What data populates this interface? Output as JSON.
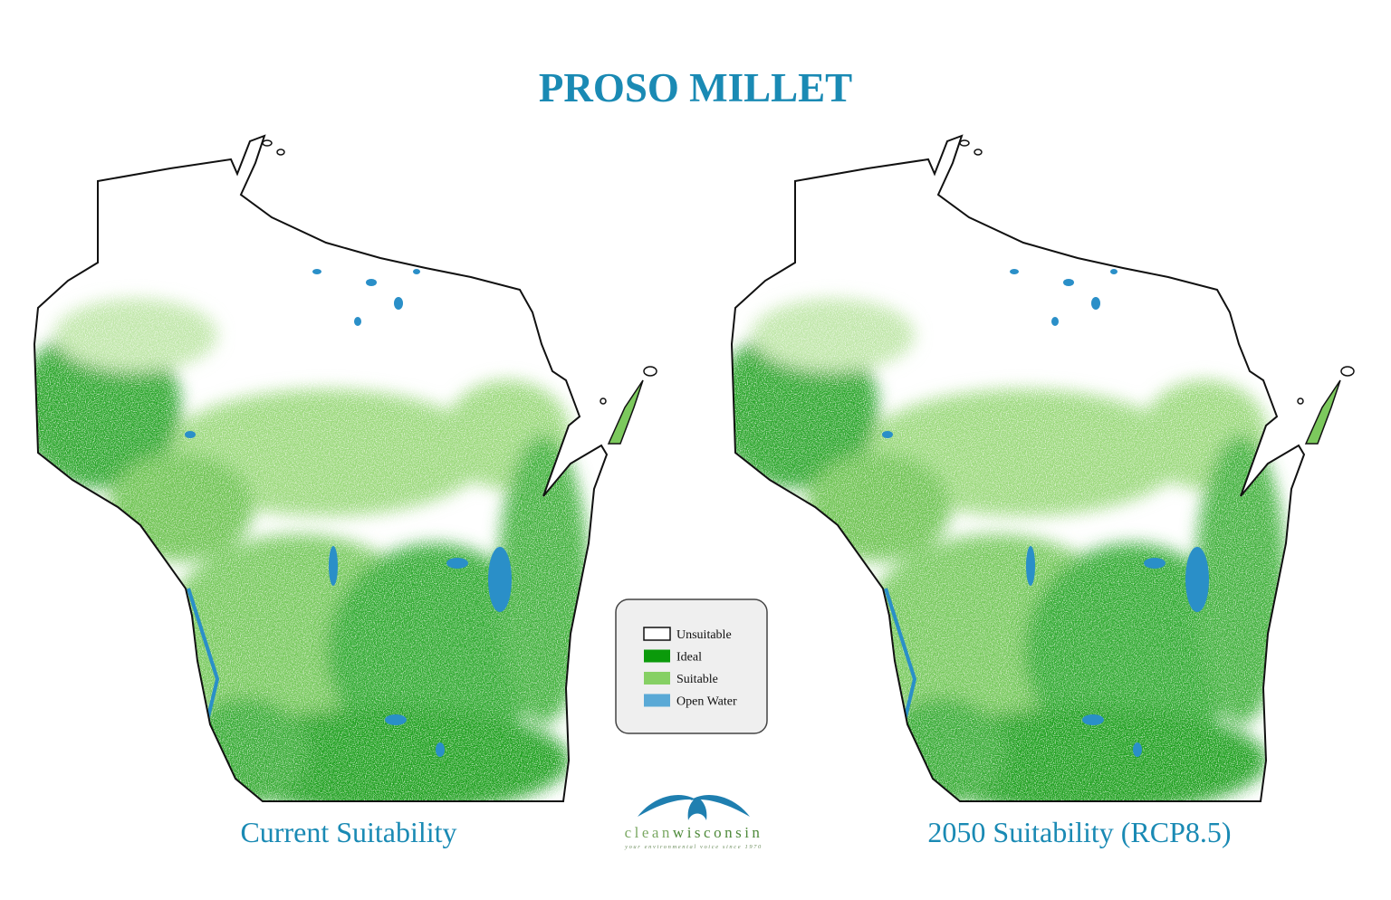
{
  "title": "PROSO MILLET",
  "maps": [
    {
      "caption": "Current Suitability"
    },
    {
      "caption": "2050 Suitability (RCP8.5)"
    }
  ],
  "legend": {
    "items": [
      {
        "label": "Unsuitable",
        "color": "#ffffff"
      },
      {
        "label": "Ideal",
        "color": "#0b9a0b"
      },
      {
        "label": "Suitable",
        "color": "#86d064"
      },
      {
        "label": "Open Water",
        "color": "#5aa9d6"
      }
    ]
  },
  "logo": {
    "name_light": "clean",
    "name_bold": "wisconsin",
    "tagline": "your environmental voice since 1970"
  }
}
